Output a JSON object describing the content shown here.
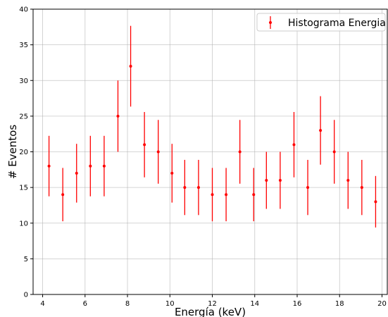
{
  "chart_data": {
    "type": "scatter",
    "xlabel": "Energía (keV)",
    "ylabel": "# Eventos",
    "xlim": [
      3.55,
      20.25
    ],
    "ylim": [
      0,
      40
    ],
    "xticks": [
      4,
      6,
      8,
      10,
      12,
      14,
      16,
      18,
      20
    ],
    "yticks": [
      0,
      5,
      10,
      15,
      20,
      25,
      30,
      35,
      40
    ],
    "grid": true,
    "legend": {
      "placement": "top-right"
    },
    "series": [
      {
        "name": "Histograma Energia",
        "color": "#ff0000",
        "style": "errorbar",
        "points": [
          {
            "x": 4.3,
            "y": 18,
            "err": 4.24
          },
          {
            "x": 4.95,
            "y": 14,
            "err": 3.74
          },
          {
            "x": 5.6,
            "y": 17,
            "err": 4.12
          },
          {
            "x": 6.25,
            "y": 18,
            "err": 4.24
          },
          {
            "x": 6.9,
            "y": 18,
            "err": 4.24
          },
          {
            "x": 7.55,
            "y": 25,
            "err": 5.0
          },
          {
            "x": 8.15,
            "y": 32,
            "err": 5.66
          },
          {
            "x": 8.8,
            "y": 21,
            "err": 4.58
          },
          {
            "x": 9.45,
            "y": 20,
            "err": 4.47
          },
          {
            "x": 10.1,
            "y": 17,
            "err": 4.12
          },
          {
            "x": 10.7,
            "y": 15,
            "err": 3.87
          },
          {
            "x": 11.35,
            "y": 15,
            "err": 3.87
          },
          {
            "x": 12.0,
            "y": 14,
            "err": 3.74
          },
          {
            "x": 12.65,
            "y": 14,
            "err": 3.74
          },
          {
            "x": 13.3,
            "y": 20,
            "err": 4.47
          },
          {
            "x": 13.95,
            "y": 14,
            "err": 3.74
          },
          {
            "x": 14.55,
            "y": 16,
            "err": 4.0
          },
          {
            "x": 15.2,
            "y": 16,
            "err": 4.0
          },
          {
            "x": 15.85,
            "y": 21,
            "err": 4.58
          },
          {
            "x": 16.5,
            "y": 15,
            "err": 3.87
          },
          {
            "x": 17.1,
            "y": 23,
            "err": 4.8
          },
          {
            "x": 17.75,
            "y": 20,
            "err": 4.47
          },
          {
            "x": 18.4,
            "y": 16,
            "err": 4.0
          },
          {
            "x": 19.05,
            "y": 15,
            "err": 3.87
          },
          {
            "x": 19.7,
            "y": 13,
            "err": 3.61
          }
        ]
      }
    ]
  }
}
